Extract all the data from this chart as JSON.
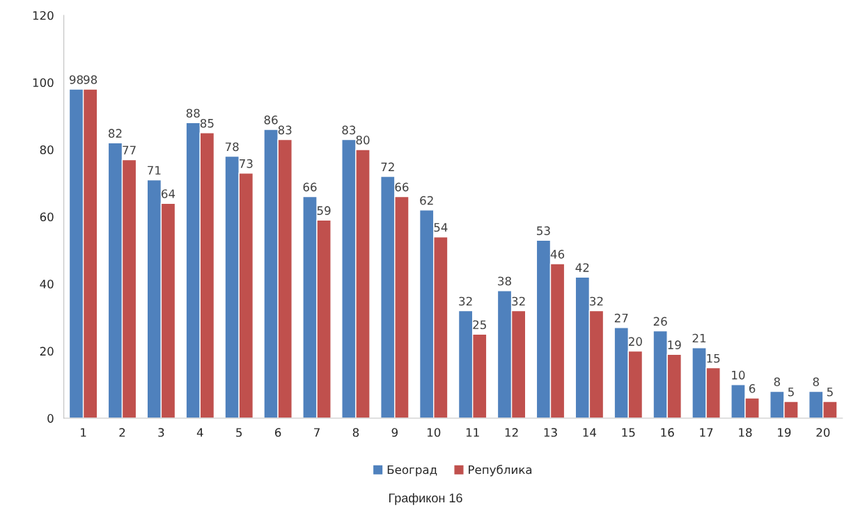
{
  "chart_data": {
    "type": "bar",
    "categories": [
      "1",
      "2",
      "3",
      "4",
      "5",
      "6",
      "7",
      "8",
      "9",
      "10",
      "11",
      "12",
      "13",
      "14",
      "15",
      "16",
      "17",
      "18",
      "19",
      "20"
    ],
    "series": [
      {
        "name": "Београд",
        "color": "#4f81bd",
        "values": [
          98,
          82,
          71,
          88,
          78,
          86,
          66,
          83,
          72,
          62,
          32,
          38,
          53,
          42,
          27,
          26,
          21,
          10,
          8,
          8
        ]
      },
      {
        "name": "Република",
        "color": "#c0504d",
        "values": [
          98,
          77,
          64,
          85,
          73,
          83,
          59,
          80,
          66,
          54,
          25,
          32,
          46,
          32,
          20,
          19,
          15,
          6,
          5,
          5
        ]
      }
    ],
    "ylim": [
      0,
      120
    ],
    "yticks": [
      0,
      20,
      40,
      60,
      80,
      100,
      120
    ],
    "data_labels": true,
    "grid": false,
    "legend": "bottom",
    "annotations": [
      "Графикон 16"
    ]
  }
}
